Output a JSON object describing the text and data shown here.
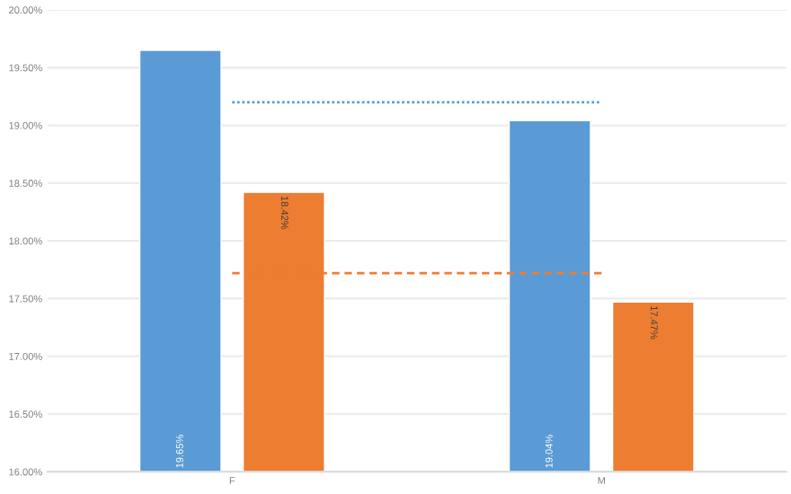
{
  "chart_data": {
    "type": "bar",
    "categories": [
      "F",
      "M"
    ],
    "series": [
      {
        "color": "#5b9bd5",
        "values": [
          19.65,
          19.04
        ],
        "value_labels": [
          "19.65%",
          "19.04%"
        ]
      },
      {
        "color": "#ed7d31",
        "values": [
          18.42,
          17.47
        ],
        "value_labels": [
          "18.42%",
          "17.47%"
        ]
      }
    ],
    "ylim": [
      16,
      20
    ],
    "yticks": [
      {
        "value": 16,
        "label": "16.00%"
      },
      {
        "value": 16.5,
        "label": "16.50%"
      },
      {
        "value": 17,
        "label": "17.00%"
      },
      {
        "value": 17.5,
        "label": "17.50%"
      },
      {
        "value": 18,
        "label": "18.00%"
      },
      {
        "value": 18.5,
        "label": "18.50%"
      },
      {
        "value": 19,
        "label": "19.00%"
      },
      {
        "value": 19.5,
        "label": "19.50%"
      },
      {
        "value": 20,
        "label": "20.00%"
      }
    ],
    "grid": "y",
    "ref_lines": [
      {
        "axis": "y",
        "value": 19.2,
        "color": "#5b9bd5",
        "line_style": "dotted"
      },
      {
        "axis": "y",
        "value": 17.72,
        "color": "#ed7d31",
        "line_style": "dashed"
      }
    ]
  }
}
